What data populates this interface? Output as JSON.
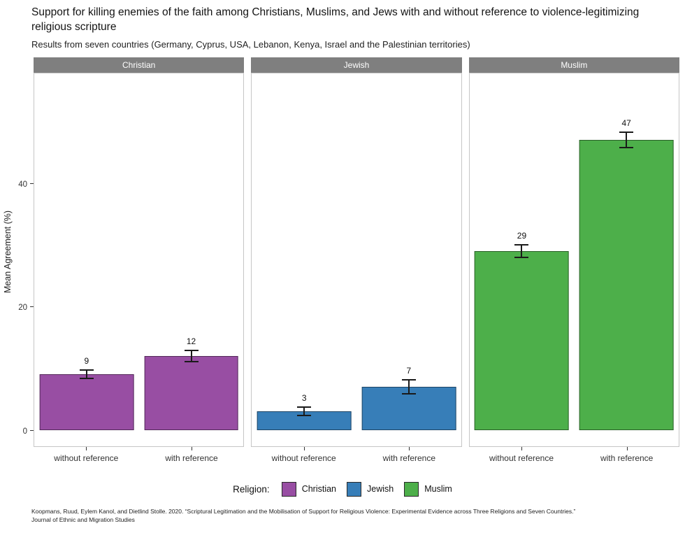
{
  "title": "Support for killing enemies of the faith among Christians, Muslims, and Jews with and without reference to violence-legitimizing religious scripture",
  "subtitle": "Results from seven countries (Germany, Cyprus, USA, Lebanon, Kenya, Israel and the Palestinian territories)",
  "caption": {
    "line1": "Koopmans, Ruud, Eylem Kanol, and Dietlind Stolle. 2020. “Scriptural Legitimation and the Mobilisation of Support for Religious Violence: Experimental Evidence across Three Religions and Seven Countries.”",
    "line2": "Journal of Ethnic and Migration Studies"
  },
  "legend": {
    "title": "Religion:",
    "items": [
      {
        "label": "Christian",
        "color": "#984EA3"
      },
      {
        "label": "Jewish",
        "color": "#377EB8"
      },
      {
        "label": "Muslim",
        "color": "#4DAF4A"
      }
    ]
  },
  "chart_data": {
    "type": "bar",
    "title": "Support for killing enemies of the faith among Christians, Muslims, and Jews with and without reference to violence-legitimizing religious scripture",
    "subtitle": "Results from seven countries (Germany, Cyprus, USA, Lebanon, Kenya, Israel and the Palestinian territories)",
    "ylabel": "Mean Agreement (%)",
    "xlabel": "",
    "yticks": [
      0,
      20,
      40
    ],
    "ylim": [
      0,
      58
    ],
    "grid": false,
    "legend_position": "bottom",
    "x_categories": [
      "without reference",
      "with reference"
    ],
    "facets": [
      {
        "label": "Christian",
        "color": "#984EA3",
        "bars": [
          {
            "category": "without reference",
            "value": 9,
            "error": 0.8
          },
          {
            "category": "with reference",
            "value": 12,
            "error": 1.0
          }
        ]
      },
      {
        "label": "Jewish",
        "color": "#377EB8",
        "bars": [
          {
            "category": "without reference",
            "value": 3,
            "error": 0.8
          },
          {
            "category": "with reference",
            "value": 7,
            "error": 1.2
          }
        ]
      },
      {
        "label": "Muslim",
        "color": "#4DAF4A",
        "bars": [
          {
            "category": "without reference",
            "value": 29,
            "error": 1.1
          },
          {
            "category": "with reference",
            "value": 47,
            "error": 1.4
          }
        ]
      }
    ]
  }
}
